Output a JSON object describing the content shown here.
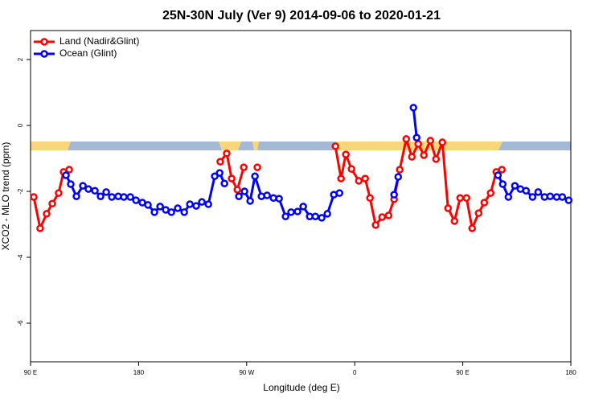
{
  "chart_data": {
    "type": "line",
    "title": "25N-30N July (Ver 9)   2014-09-06 to 2020-01-21",
    "x_label": "Longitude (deg E)",
    "y_label": "XCO2 - MLO trend (ppm)",
    "xlim": [
      90,
      540
    ],
    "ylim": [
      -7.17,
      2.88
    ],
    "xticks": [
      {
        "value": 90,
        "label": "90 E"
      },
      {
        "value": 180,
        "label": "180"
      },
      {
        "value": 270,
        "label": "90 W"
      },
      {
        "value": 360,
        "label": "0"
      },
      {
        "value": 450,
        "label": "90 E"
      },
      {
        "value": 540,
        "label": "180"
      }
    ],
    "yticks": [
      -6,
      -4,
      -2,
      0,
      2
    ],
    "legend": "top-left",
    "series": [
      {
        "name": "Land (Nadir&Glint)",
        "color": "#ff0000",
        "x": [
          92.7,
          98.0,
          103.4,
          108.1,
          113.4,
          117.5,
          122.2,
          null,
          248.0,
          253.4,
          257.5,
          262.2,
          267.6,
          null,
          278.9,
          null,
          343.9,
          348.6,
          352.6,
          357.3,
          363.4,
          368.7,
          372.7,
          377.4,
          382.8,
          388.2,
          392.8,
          397.5,
          402.9,
          407.6,
          412.9,
          417.6,
          423.0,
          427.7,
          433.0,
          437.7,
          443.1,
          447.8,
          453.1,
          457.8,
          463.2,
          467.9,
          473.2,
          477.9,
          482.6
        ],
        "values": [
          -2.17,
          -3.12,
          -2.68,
          -2.37,
          -2.05,
          -1.41,
          -1.34,
          null,
          -1.1,
          -0.85,
          -1.61,
          -1.95,
          -1.27,
          null,
          -1.27,
          null,
          -0.63,
          -1.61,
          -0.88,
          -1.32,
          -1.68,
          -1.61,
          -2.2,
          -3.02,
          -2.78,
          -2.73,
          -2.24,
          -1.34,
          -0.41,
          -0.95,
          -0.56,
          -0.9,
          -0.46,
          -1.02,
          -0.51,
          -2.51,
          -2.9,
          -2.2,
          -2.2,
          -3.12,
          -2.66,
          -2.34,
          -2.05,
          -1.41,
          -1.34
        ]
      },
      {
        "name": "Ocean (Glint)",
        "color": "#0000ff",
        "x": [
          119.5,
          123.5,
          128.2,
          133.6,
          138.2,
          143.6,
          148.3,
          153.0,
          157.7,
          163.0,
          167.7,
          173.1,
          177.8,
          183.1,
          187.8,
          193.2,
          197.9,
          202.6,
          207.3,
          212.6,
          218.0,
          222.7,
          228.0,
          232.7,
          238.1,
          243.4,
          247.5,
          251.5,
          null,
          263.5,
          268.2,
          272.9,
          276.9,
          282.3,
          287.0,
          292.3,
          297.0,
          302.4,
          307.0,
          312.4,
          317.1,
          322.5,
          327.2,
          332.5,
          337.2,
          342.6,
          347.3,
          null,
          392.8,
          396.2,
          null,
          408.9,
          411.6,
          null,
          479.3,
          483.3,
          488.0,
          493.4,
          498.0,
          502.7,
          508.1,
          512.8,
          518.1,
          522.8,
          528.2,
          532.9,
          538.2
        ],
        "values": [
          -1.51,
          -1.78,
          -2.15,
          -1.83,
          -1.93,
          -1.98,
          -2.15,
          -2.02,
          -2.17,
          -2.15,
          -2.17,
          -2.17,
          -2.27,
          -2.34,
          -2.41,
          -2.63,
          -2.46,
          -2.56,
          -2.63,
          -2.51,
          -2.63,
          -2.39,
          -2.44,
          -2.32,
          -2.39,
          -1.54,
          -1.44,
          -1.76,
          null,
          -2.15,
          -2.0,
          -2.29,
          -1.54,
          -2.15,
          -2.12,
          -2.2,
          -2.22,
          -2.76,
          -2.63,
          -2.61,
          -2.46,
          -2.76,
          -2.76,
          -2.8,
          -2.68,
          -2.1,
          -2.05,
          null,
          -2.1,
          -1.56,
          null,
          0.54,
          -0.37,
          null,
          -1.51,
          -1.78,
          -2.17,
          -1.83,
          -1.93,
          -1.98,
          -2.17,
          -2.02,
          -2.17,
          -2.15,
          -2.17,
          -2.17,
          -2.27
        ]
      }
    ]
  }
}
